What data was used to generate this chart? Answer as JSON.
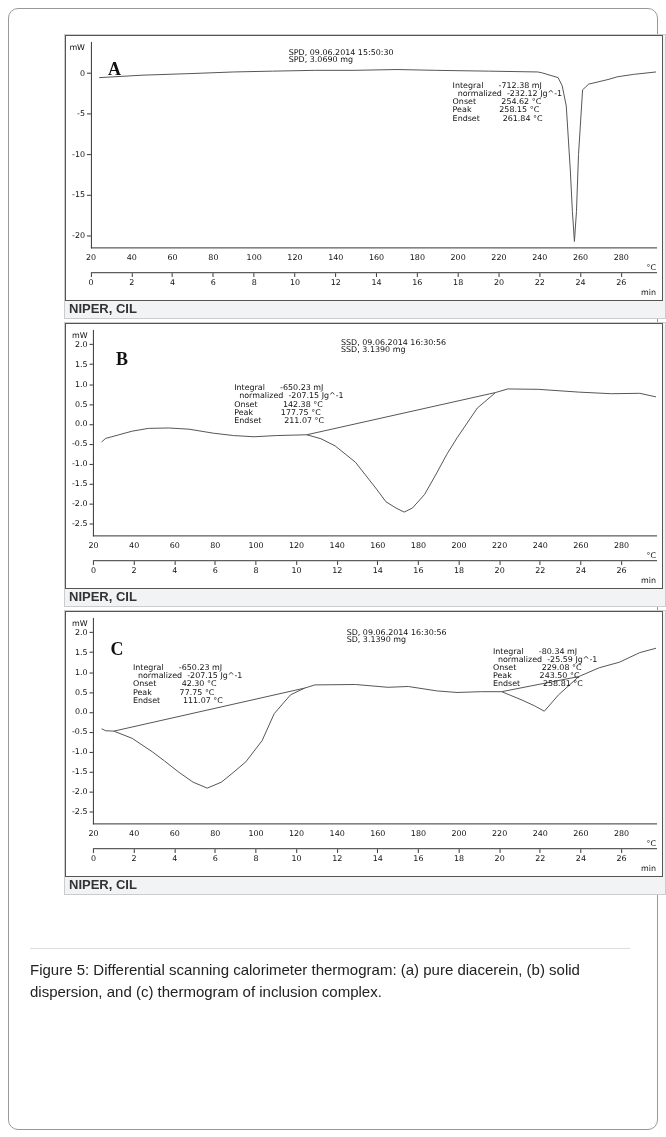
{
  "chart_data": [
    {
      "type": "line",
      "ylabel": "mW",
      "xlabel": "°C",
      "x2label": "min",
      "xlim": [
        20,
        297
      ],
      "xticks": [
        20,
        40,
        60,
        80,
        100,
        120,
        140,
        160,
        180,
        200,
        220,
        240,
        260,
        280
      ],
      "x2lim": [
        0,
        27.7
      ],
      "x2ticks": [
        0,
        2,
        4,
        6,
        8,
        10,
        12,
        14,
        16,
        18,
        20,
        22,
        24,
        26
      ],
      "ylim": [
        -21.5,
        3.8
      ],
      "yticks": [
        -20,
        -15,
        -10,
        -5,
        0
      ],
      "series": [
        {
          "color": "#555555",
          "x": [
            24,
            45,
            69,
            90,
            109,
            130,
            149,
            170,
            189,
            215,
            239,
            241,
            245,
            249,
            251,
            253,
            255,
            256,
            257,
            258,
            259,
            261,
            264,
            269,
            274,
            278,
            286,
            297
          ],
          "values": [
            -0.5,
            -0.2,
            0.0,
            0.2,
            0.3,
            0.4,
            0.4,
            0.5,
            0.4,
            0.3,
            0.2,
            0.1,
            -0.2,
            -0.5,
            -1.5,
            -4,
            -12,
            -17,
            -20.7,
            -17,
            -10,
            -2,
            -1.3,
            -1.0,
            -0.7,
            -0.4,
            -0.1,
            0.2
          ]
        }
      ],
      "annotations": [
        "A",
        "SPD, 09.06.2014 15:50:30",
        "SPD, 3.0690 mg",
        "Integral      -712.38 mJ",
        "  normalized  -232.12 Jg^-1",
        "Onset          254.62 °C",
        "Peak           258.15 °C",
        "Endset         261.84 °C",
        "NIPER, CIL"
      ]
    },
    {
      "type": "line",
      "ylabel": "mW",
      "xlabel": "°C",
      "x2label": "min",
      "xlim": [
        20,
        297
      ],
      "xticks": [
        20,
        40,
        60,
        80,
        100,
        120,
        140,
        160,
        180,
        200,
        220,
        240,
        260,
        280
      ],
      "x2lim": [
        0,
        27.7
      ],
      "x2ticks": [
        0,
        2,
        4,
        6,
        8,
        10,
        12,
        14,
        16,
        18,
        20,
        22,
        24,
        26
      ],
      "ylim": [
        -2.8,
        2.35
      ],
      "yticks": [
        {
          "value": 2,
          "label": "2.0"
        },
        1.5,
        {
          "value": 1,
          "label": "1.0"
        },
        0.5,
        {
          "value": 0,
          "label": "0.0"
        },
        -0.5,
        {
          "value": -1,
          "label": "-1.0"
        },
        -1.5,
        {
          "value": -2,
          "label": "-2.0"
        },
        -2.5
      ],
      "series": [
        {
          "color": "#555555",
          "x": [
            24,
            26,
            29,
            39,
            47,
            57,
            67,
            79,
            89,
            99,
            110,
            125,
            132,
            139,
            149,
            159,
            164,
            169,
            173,
            177,
            183,
            189,
            194,
            199,
            209,
            218,
            224,
            239,
            259,
            275,
            289,
            297
          ],
          "values": [
            -0.44,
            -0.35,
            -0.31,
            -0.17,
            -0.1,
            -0.09,
            -0.12,
            -0.22,
            -0.28,
            -0.31,
            -0.28,
            -0.26,
            -0.36,
            -0.54,
            -0.95,
            -1.6,
            -1.94,
            -2.1,
            -2.2,
            -2.1,
            -1.76,
            -1.22,
            -0.75,
            -0.34,
            0.41,
            0.8,
            0.89,
            0.88,
            0.81,
            0.77,
            0.78,
            0.69
          ]
        },
        {
          "color": "#555555",
          "x": [
            125,
            218
          ],
          "values": [
            -0.26,
            0.8
          ]
        }
      ],
      "annotations": [
        "B",
        "SSD, 09.06.2014 16:30:56",
        "SSD, 3.1390 mg",
        "Integral      -650.23 mJ",
        "  normalized  -207.15 Jg^-1",
        "Onset          142.38 °C",
        "Peak           177.75 °C",
        "Endset         211.07 °C",
        "NIPER, CIL"
      ]
    },
    {
      "type": "line",
      "ylabel": "mW",
      "xlabel": "°C",
      "x2label": "min",
      "xlim": [
        20,
        297
      ],
      "xticks": [
        20,
        40,
        60,
        80,
        100,
        120,
        140,
        160,
        180,
        200,
        220,
        240,
        260,
        280
      ],
      "x2lim": [
        0,
        27.7
      ],
      "x2ticks": [
        0,
        2,
        4,
        6,
        8,
        10,
        12,
        14,
        16,
        18,
        20,
        22,
        24,
        26
      ],
      "ylim": [
        -2.8,
        2.35
      ],
      "yticks": [
        {
          "value": 2,
          "label": "2.0"
        },
        1.5,
        {
          "value": 1,
          "label": "1.0"
        },
        0.5,
        {
          "value": 0,
          "label": "0.0"
        },
        -0.5,
        {
          "value": -1,
          "label": "-1.0"
        },
        -1.5,
        {
          "value": -2,
          "label": "-2.0"
        },
        -2.5
      ],
      "series": [
        {
          "color": "#555555",
          "x": [
            24,
            26,
            30,
            39,
            49,
            55,
            62,
            69,
            76,
            83,
            89,
            95,
            103,
            109,
            117,
            124,
            129,
            149,
            165,
            175,
            189,
            199,
            211,
            221,
            231,
            237,
            242,
            249,
            259,
            269,
            279,
            289,
            297
          ],
          "values": [
            -0.41,
            -0.46,
            -0.47,
            -0.65,
            -0.99,
            -1.22,
            -1.5,
            -1.75,
            -1.9,
            -1.75,
            -1.5,
            -1.24,
            -0.71,
            -0.03,
            0.44,
            0.61,
            0.69,
            0.7,
            0.63,
            0.65,
            0.54,
            0.5,
            0.52,
            0.52,
            0.31,
            0.17,
            0.03,
            0.44,
            0.9,
            1.12,
            1.26,
            1.5,
            1.61
          ]
        },
        {
          "color": "#555555",
          "x": [
            30,
            124
          ],
          "values": [
            -0.47,
            0.61
          ]
        },
        {
          "color": "#555555",
          "x": [
            221,
            259
          ],
          "values": [
            0.52,
            0.9
          ]
        }
      ],
      "annotations": [
        "C",
        "SD, 09.06.2014 16:30:56",
        "SD, 3.1390 mg",
        "Integral      -650.23 mJ",
        "  normalized  -207.15 Jg^-1",
        "Onset          42.30 °C",
        "Peak           77.75 °C",
        "Endset         111.07 °C",
        "Integral      -80.34 mJ",
        "  normalized  -25.59 Jg^-1",
        "Onset          229.08 °C",
        "Peak           243.50 °C",
        "Endset         258.81 °C",
        "NIPER, CIL",
        "Figure 5: Differential scanning calorimeter thermogram: (a) pure diacerein, (b) solid dispersion, and (c) thermogram of inclusion complex."
      ]
    }
  ]
}
